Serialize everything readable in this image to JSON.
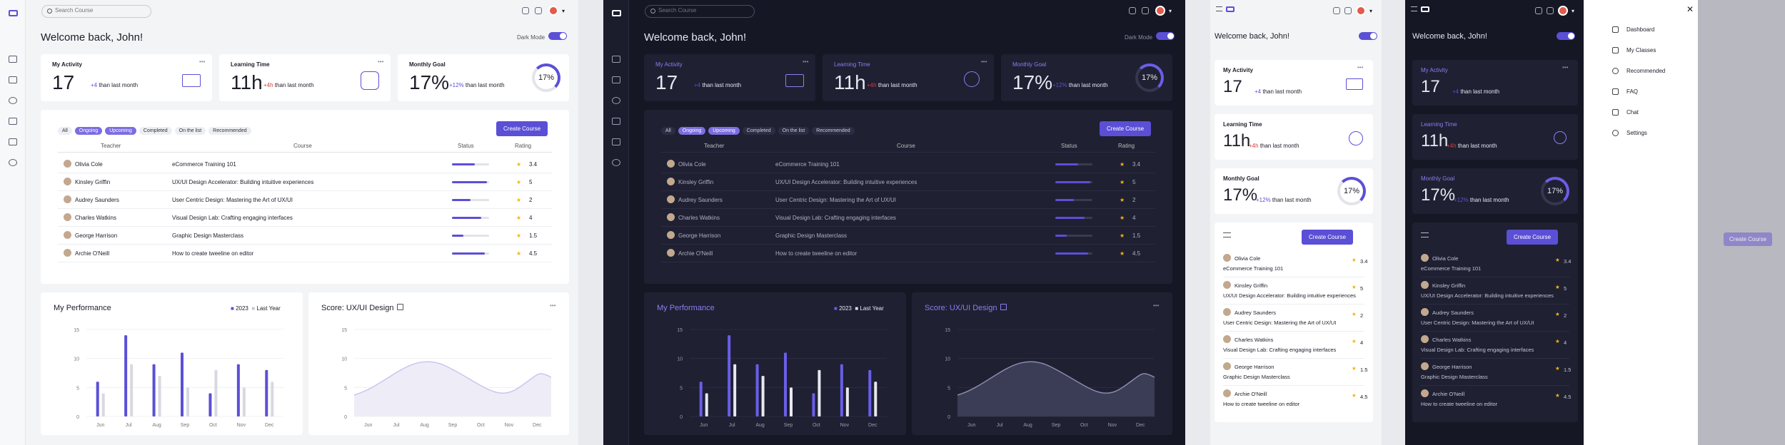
{
  "search": {
    "placeholder": "Search Course"
  },
  "welcome": "Welcome back, John!",
  "dark_mode": {
    "label": "Dark Mode",
    "toggle_on": "ON"
  },
  "stats": [
    {
      "title": "My Activity",
      "value": "17",
      "delta": "+4",
      "suffix": "than last month",
      "trend": "up"
    },
    {
      "title": "Learning Time",
      "value": "11h",
      "delta": "+4h",
      "suffix": "than last month",
      "trend": "down"
    },
    {
      "title": "Monthly Goal",
      "value": "17%",
      "delta": "+12%",
      "suffix": "than last month",
      "trend": "up",
      "ring": "17%"
    }
  ],
  "filters": [
    {
      "label": "All",
      "active": false
    },
    {
      "label": "Ongoing",
      "active": true
    },
    {
      "label": "Upcoming",
      "active": true
    },
    {
      "label": "Completed",
      "active": false
    },
    {
      "label": "On the list",
      "active": false
    },
    {
      "label": "Recommended",
      "active": false
    }
  ],
  "create_course": "Create Course",
  "table_headers": {
    "teacher": "Teacher",
    "course": "Course",
    "status": "Status",
    "rating": "Rating"
  },
  "courses": [
    {
      "teacher": "Olivia Cole",
      "course": "eCommerce Training 101",
      "progress": 0.62,
      "rating": "3.4"
    },
    {
      "teacher": "Kinsley Griffin",
      "course": "UX/UI Design Accelerator: Building intuitive experiences",
      "progress": 0.95,
      "rating": "5"
    },
    {
      "teacher": "Audrey Saunders",
      "course": "User Centric Design: Mastering the Art of UX/UI",
      "progress": 0.5,
      "rating": "2"
    },
    {
      "teacher": "Charles Watkins",
      "course": "Visual Design Lab: Crafting engaging interfaces",
      "progress": 0.78,
      "rating": "4"
    },
    {
      "teacher": "George Harrison",
      "course": "Graphic Design Masterclass",
      "progress": 0.3,
      "rating": "1.5"
    },
    {
      "teacher": "Archie O'Neill",
      "course": "How to create tweeline on editor",
      "progress": 0.88,
      "rating": "4.5"
    }
  ],
  "performance": {
    "title": "My Performance",
    "legend": [
      "2023",
      "Last Year"
    ],
    "y_ticks": [
      "15",
      "10",
      "5",
      "0"
    ],
    "months": [
      "Jun",
      "Jul",
      "Aug",
      "Sep",
      "Oct",
      "Nov",
      "Dec"
    ]
  },
  "score": {
    "title": "Score: UX/UI Design",
    "y_ticks": [
      "15",
      "10",
      "5",
      "0"
    ],
    "months": [
      "Jun",
      "Jul",
      "Aug",
      "Sep",
      "Oct",
      "Nov",
      "Dec"
    ]
  },
  "mobile_menu": [
    "Dashboard",
    "My Classes",
    "Recommended",
    "FAQ",
    "Chat",
    "Settings"
  ],
  "chart_data": {
    "type": "bar",
    "categories": [
      "Jun",
      "Jul",
      "Aug",
      "Sep",
      "Oct",
      "Nov",
      "Dec"
    ],
    "series": [
      {
        "name": "2023",
        "values": [
          6,
          14,
          9,
          11,
          4,
          9,
          8
        ]
      },
      {
        "name": "Last Year",
        "values": [
          4,
          9,
          7,
          5,
          8,
          5,
          6
        ]
      }
    ],
    "title": "My Performance",
    "ylim": [
      0,
      15
    ],
    "colors": [
      "#5b4fd6",
      "#d8d9e0"
    ]
  },
  "colors": {
    "accent": "#5b4fd6",
    "neg": "#d93a3a",
    "star": "#f3b414"
  }
}
